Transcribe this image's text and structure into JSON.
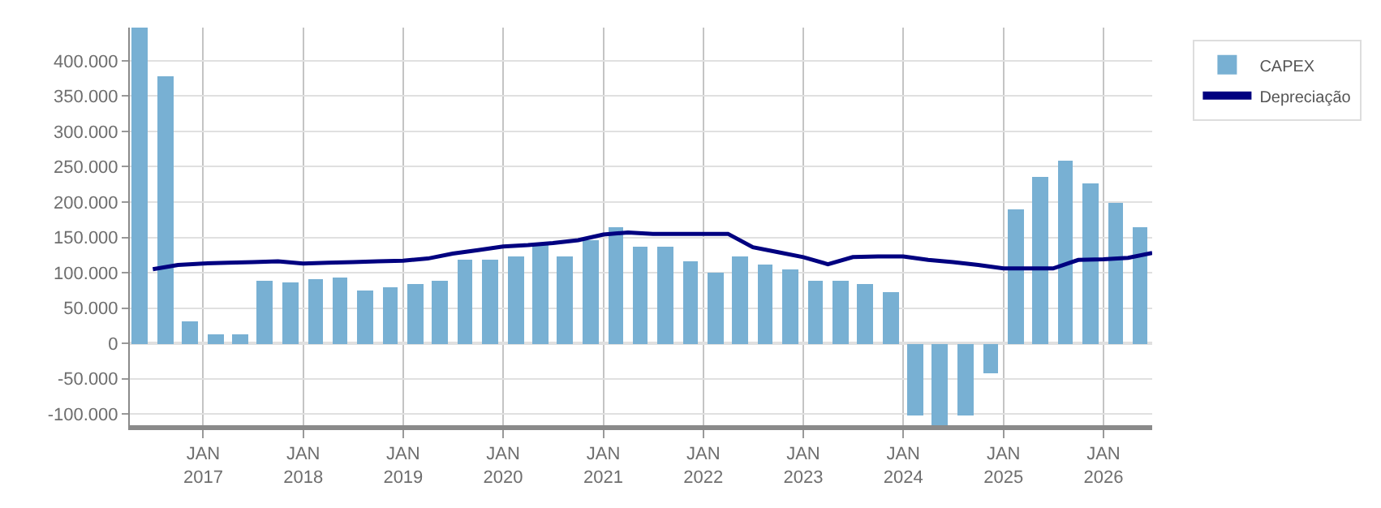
{
  "chart_data": {
    "type": "bar",
    "xlim": [
      "2016-04-08",
      "2026-06-28"
    ],
    "ylim": [
      -116000,
      447000
    ],
    "yticks": [
      {
        "value": -100000,
        "label": "-100.000"
      },
      {
        "value": -50000,
        "label": "-50.000"
      },
      0,
      {
        "value": 50000,
        "label": "50.000"
      },
      {
        "value": 100000,
        "label": "100.000"
      },
      {
        "value": 150000,
        "label": "150.000"
      },
      {
        "value": 200000,
        "label": "200.000"
      },
      {
        "value": 250000,
        "label": "250.000"
      },
      {
        "value": 300000,
        "label": "300.000"
      },
      {
        "value": 350000,
        "label": "350.000"
      },
      {
        "value": 400000,
        "label": "400.000"
      }
    ],
    "xticks": [
      {
        "value": "2017-01-01",
        "label": "JAN\n2017"
      },
      {
        "value": "2018-01-01",
        "label": "JAN\n2018"
      },
      {
        "value": "2019-01-01",
        "label": "JAN\n2019"
      },
      {
        "value": "2020-01-01",
        "label": "JAN\n2020"
      },
      {
        "value": "2021-01-01",
        "label": "JAN\n2021"
      },
      {
        "value": "2022-01-01",
        "label": "JAN\n2022"
      },
      {
        "value": "2023-01-01",
        "label": "JAN\n2023"
      },
      {
        "value": "2024-01-01",
        "label": "JAN\n2024"
      },
      {
        "value": "2025-01-01",
        "label": "JAN\n2025"
      },
      {
        "value": "2026-01-01",
        "label": "JAN\n2026"
      }
    ],
    "grid": true,
    "legend": "top right",
    "x": [
      "2016-05-15",
      "2016-08-15",
      "2016-11-15",
      "2017-02-15",
      "2017-05-15",
      "2017-08-15",
      "2017-11-15",
      "2018-02-15",
      "2018-05-15",
      "2018-08-15",
      "2018-11-15",
      "2019-02-15",
      "2019-05-15",
      "2019-08-15",
      "2019-11-15",
      "2020-02-15",
      "2020-05-15",
      "2020-08-15",
      "2020-11-15",
      "2021-02-15",
      "2021-05-15",
      "2021-08-15",
      "2021-11-15",
      "2022-02-15",
      "2022-05-15",
      "2022-08-15",
      "2022-11-15",
      "2023-02-15",
      "2023-05-15",
      "2023-08-15",
      "2023-11-15",
      "2024-02-15",
      "2024-05-15",
      "2024-08-15",
      "2024-11-15",
      "2025-02-15",
      "2025-05-15",
      "2025-08-15",
      "2025-11-15",
      "2026-02-15",
      "2026-05-15"
    ],
    "series": [
      {
        "name": "CAPEX",
        "color": "#78b0d3",
        "values": [
          447000,
          378000,
          32000,
          12000,
          12000,
          89000,
          86000,
          91000,
          93000,
          74000,
          80000,
          83000,
          89000,
          118000,
          118000,
          122000,
          139000,
          124000,
          146000,
          165000,
          137000,
          137000,
          116000,
          99000,
          124000,
          111000,
          105000,
          88000,
          88000,
          84000,
          73000,
          -102000,
          -115000,
          -102000,
          -43000,
          189000,
          236000,
          259000,
          227000,
          199000,
          165000
        ]
      },
      {
        "name": "Depreciação",
        "type": "line",
        "color": "#000080",
        "marker": "none",
        "line_style": "solid",
        "x": [
          "2016-07-01",
          "2016-10-01",
          "2017-01-01",
          "2017-04-01",
          "2017-07-01",
          "2017-10-01",
          "2018-01-01",
          "2018-04-01",
          "2018-07-01",
          "2018-10-01",
          "2019-01-01",
          "2019-04-01",
          "2019-07-01",
          "2019-10-01",
          "2020-01-01",
          "2020-04-01",
          "2020-07-01",
          "2020-10-01",
          "2021-01-01",
          "2021-04-01",
          "2021-07-01",
          "2021-10-01",
          "2022-01-01",
          "2022-04-01",
          "2022-07-01",
          "2022-10-01",
          "2023-01-01",
          "2023-04-01",
          "2023-07-01",
          "2023-10-01",
          "2024-01-01",
          "2024-04-01",
          "2024-07-01",
          "2024-10-01",
          "2025-01-01",
          "2025-04-01",
          "2025-07-01",
          "2025-10-01",
          "2026-01-01",
          "2026-04-01",
          "2026-06-28"
        ],
        "values": [
          105000,
          111000,
          113000,
          114000,
          115000,
          116000,
          113000,
          114000,
          115000,
          116000,
          117000,
          120000,
          127000,
          132000,
          137000,
          139000,
          142000,
          146000,
          154000,
          157000,
          155000,
          155000,
          155000,
          155000,
          136000,
          129000,
          122000,
          112000,
          122000,
          123000,
          123000,
          118000,
          115000,
          111000,
          106000,
          106000,
          106000,
          118000,
          119000,
          121000,
          128000
        ]
      }
    ]
  }
}
